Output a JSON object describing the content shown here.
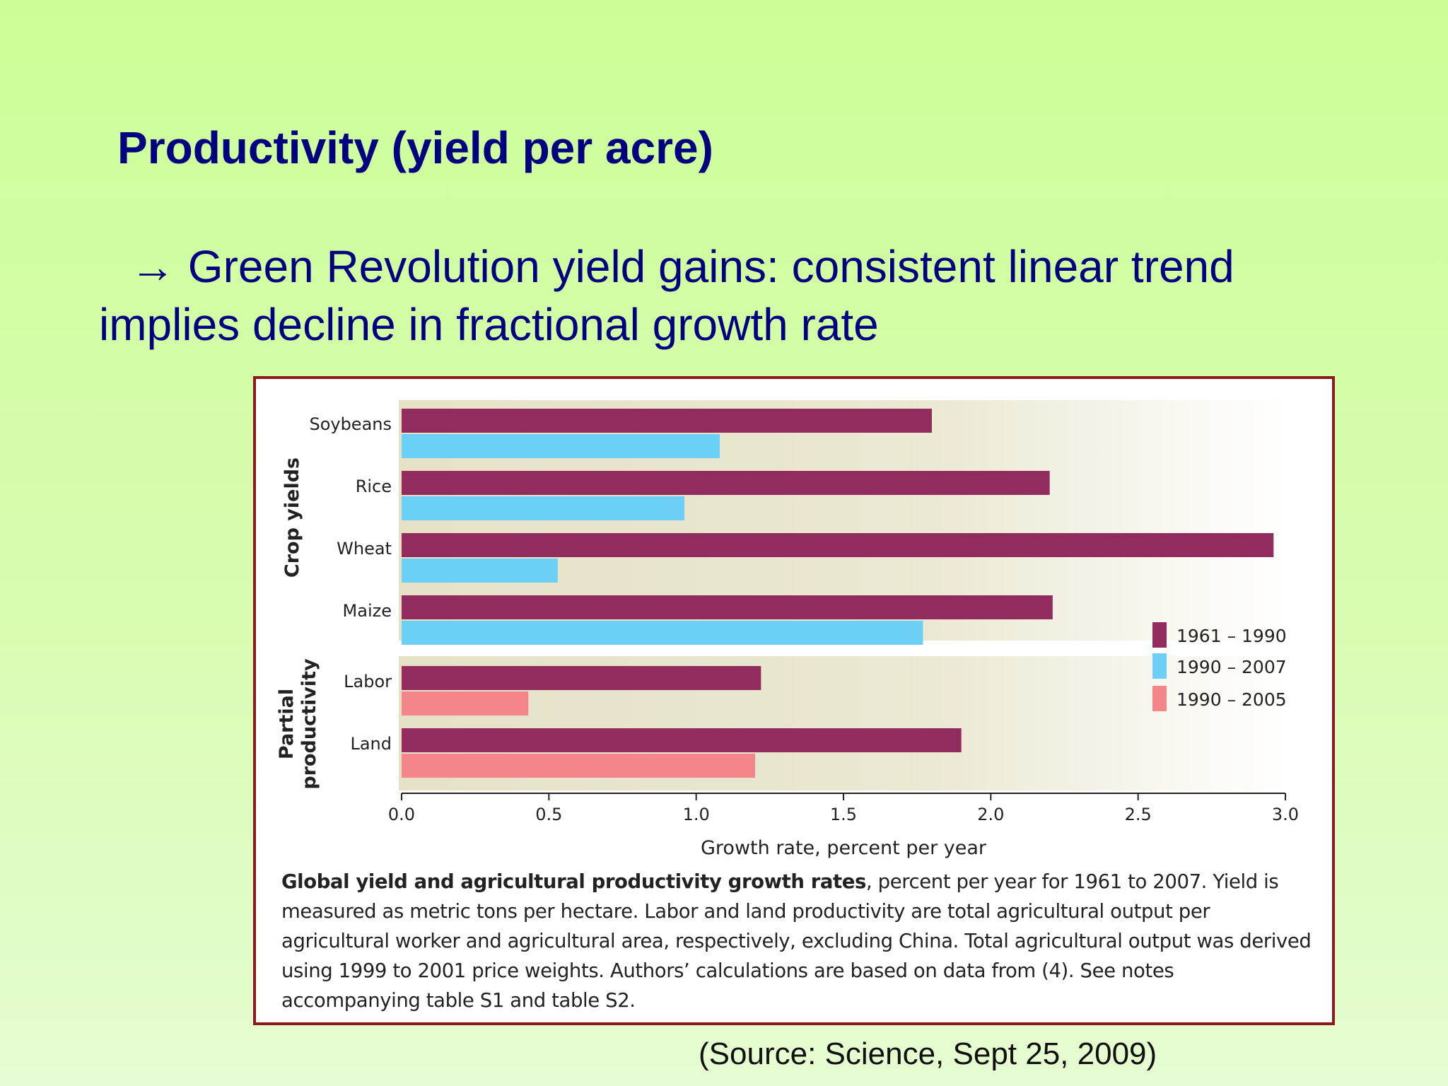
{
  "slide": {
    "title": "Productivity (yield per acre)",
    "bullet_arrow": "→",
    "bullet_text": "Green Revolution yield gains: consistent linear trend implies decline in fractional growth rate",
    "source": "(Source: Science, Sept 25, 2009)"
  },
  "caption": {
    "bold": "Global yield and agricultural productivity growth rates",
    "rest": ", percent per year for 1961 to 2007. Yield is measured as metric tons per hectare. Labor and land productivity are total agricultural output per agricultural worker and agricultural area, respectively, excluding China. Total agricultural output was derived using 1999 to 2001 price weights. Authors’ calculations are based on data from (4). See notes accompanying table S1 and table S2."
  },
  "chart_data": {
    "type": "bar",
    "orientation": "horizontal",
    "xlabel": "Growth rate, percent per year",
    "xlim": [
      0,
      3.0
    ],
    "xticks": [
      "0.0",
      "0.5",
      "1.0",
      "1.5",
      "2.0",
      "2.5",
      "3.0"
    ],
    "legend_position": "right",
    "groups": [
      {
        "label": "Crop yields",
        "categories": [
          "Soybeans",
          "Rice",
          "Wheat",
          "Maize"
        ],
        "series": [
          {
            "name": "1961 – 1990",
            "color": "#922b5e",
            "values": [
              1.8,
              2.2,
              2.96,
              2.21
            ]
          },
          {
            "name": "1990 – 2007",
            "color": "#6ccff6",
            "values": [
              1.08,
              0.96,
              0.53,
              1.77
            ]
          }
        ]
      },
      {
        "label": "Partial productivity",
        "categories": [
          "Labor",
          "Land"
        ],
        "series": [
          {
            "name": "1961 – 1990",
            "color": "#922b5e",
            "values": [
              1.22,
              1.9
            ]
          },
          {
            "name": "1990 – 2005",
            "color": "#f4858a",
            "values": [
              0.43,
              1.2
            ]
          }
        ]
      }
    ],
    "legend": [
      {
        "name": "1961 – 1990",
        "color": "#922b5e"
      },
      {
        "name": "1990 – 2007",
        "color": "#6ccff6"
      },
      {
        "name": "1990 – 2005",
        "color": "#f4858a"
      }
    ]
  }
}
